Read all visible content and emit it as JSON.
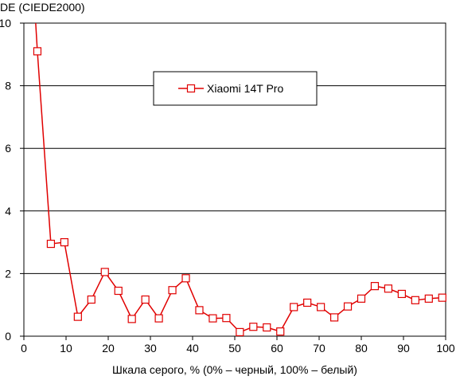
{
  "chart_data": {
    "type": "line",
    "title": "",
    "ylabel": "DE (CIEDE2000)",
    "xlabel": "Шкала серого, % (0% – черный, 100% – белый)",
    "xlim": [
      0,
      100
    ],
    "ylim": [
      0,
      10
    ],
    "x_ticks": [
      0,
      10,
      20,
      30,
      40,
      50,
      60,
      70,
      80,
      90,
      100
    ],
    "y_ticks": [
      0,
      2,
      4,
      6,
      8,
      10
    ],
    "grid": "horizontal",
    "legend_position": "upper-center",
    "series": [
      {
        "name": "Xiaomi 14T Pro",
        "color": "#e00000",
        "marker": "square",
        "line_start": {
          "x": 2.8,
          "y": 10.0
        },
        "x": [
          3.2,
          6.4,
          9.6,
          12.8,
          16.0,
          19.2,
          22.4,
          25.6,
          28.8,
          32.0,
          35.2,
          38.4,
          41.6,
          44.8,
          48.0,
          51.2,
          54.4,
          57.6,
          60.8,
          64.0,
          67.2,
          70.4,
          73.6,
          76.8,
          80.0,
          83.2,
          86.4,
          89.6,
          92.8,
          96.0,
          99.2
        ],
        "y": [
          9.1,
          2.95,
          3.0,
          0.62,
          1.17,
          2.05,
          1.45,
          0.55,
          1.17,
          0.57,
          1.47,
          1.85,
          0.83,
          0.57,
          0.58,
          0.13,
          0.3,
          0.28,
          0.15,
          0.93,
          1.07,
          0.93,
          0.6,
          0.95,
          1.2,
          1.6,
          1.52,
          1.35,
          1.15,
          1.2,
          1.23
        ]
      }
    ]
  }
}
